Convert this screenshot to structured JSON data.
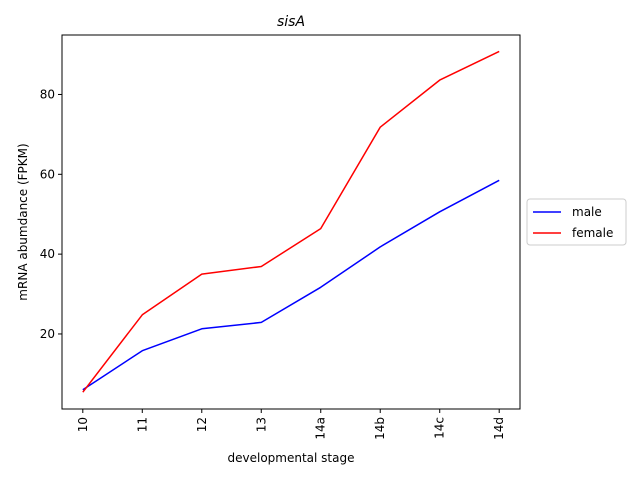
{
  "chart_data": {
    "type": "line",
    "title": "sisA",
    "xlabel": "developmental stage",
    "ylabel": "mRNA abumdance (FPKM)",
    "categories": [
      "10",
      "11",
      "12",
      "13",
      "14a",
      "14b",
      "14c",
      "14d"
    ],
    "series": [
      {
        "name": "male",
        "color": "#0000ff",
        "values": [
          6.0,
          15.8,
          21.3,
          22.9,
          31.7,
          41.8,
          50.6,
          58.5
        ]
      },
      {
        "name": "female",
        "color": "#ff0000",
        "values": [
          5.4,
          24.8,
          35.0,
          36.9,
          46.4,
          71.8,
          83.6,
          90.8
        ]
      }
    ],
    "yticks": [
      20,
      40,
      60,
      80
    ],
    "ylim": [
      1.2,
      94.9
    ],
    "grid": false,
    "legend_position": "center-right"
  }
}
